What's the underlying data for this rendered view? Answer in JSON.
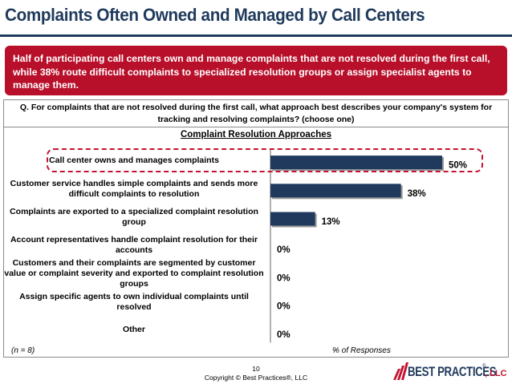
{
  "page": {
    "title": "Complaints Often Owned and Managed by Call Centers",
    "summary": "Half of participating call centers own and manage complaints that are not resolved during the first call, while 38% route difficult complaints to specialized resolution groups or assign specialist agents to manage them.",
    "question": "Q. For complaints that are not resolved during the first call, what approach best describes your company's system for tracking and resolving complaints? (choose one)",
    "sample_note": "(n = 8)",
    "page_number": "10",
    "copyright": "Copyright © Best Practices®, LLC",
    "logo": {
      "name": "BEST PRACTICES",
      "reg": "®",
      "suffix": ", LLC"
    }
  },
  "colors": {
    "title": "#1f3a5c",
    "summary_bg": "#b8102a",
    "bar": "#1f3a5c",
    "highlight": "#c41230"
  },
  "chart_data": {
    "type": "bar",
    "orientation": "horizontal",
    "title": "Complaint Resolution Approaches",
    "xlabel": "% of Responses",
    "xlim": [
      0,
      50
    ],
    "categories": [
      "Call center owns and manages complaints",
      "Customer service handles simple complaints and sends more difficult complaints to resolution",
      "Complaints are exported to a specialized complaint resolution group",
      "Account representatives handle complaint resolution for their accounts",
      "Customers and their complaints are segmented by customer value or complaint severity and exported to complaint resolution groups",
      "Assign specific agents to own individual complaints until resolved",
      "Other"
    ],
    "values": [
      50,
      38,
      13,
      0,
      0,
      0,
      0
    ],
    "value_labels": [
      "50%",
      "38%",
      "13%",
      "0%",
      "0%",
      "0%",
      "0%"
    ],
    "highlighted_category": "Call center owns and manages complaints"
  }
}
